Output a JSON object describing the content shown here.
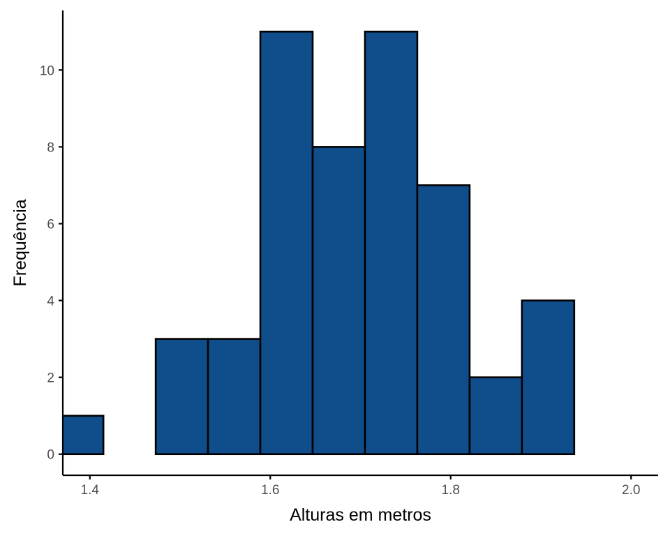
{
  "chart_data": {
    "type": "histogram",
    "title": "",
    "xlabel": "Alturas em metros",
    "ylabel": "Frequência",
    "xlim": [
      1.37,
      2.03
    ],
    "ylim": [
      -0.55,
      11.55
    ],
    "x_ticks": [
      1.4,
      1.6,
      1.8,
      2.0
    ],
    "x_tick_labels": [
      "1.4",
      "1.6",
      "1.8",
      "2.0"
    ],
    "y_ticks": [
      0,
      2,
      4,
      6,
      8,
      10
    ],
    "y_tick_labels": [
      "0",
      "2",
      "4",
      "6",
      "8",
      "10"
    ],
    "bins": [
      {
        "x0": 1.357,
        "x1": 1.415,
        "count": 1
      },
      {
        "x0": 1.415,
        "x1": 1.473,
        "count": 0
      },
      {
        "x0": 1.473,
        "x1": 1.531,
        "count": 3
      },
      {
        "x0": 1.531,
        "x1": 1.589,
        "count": 3
      },
      {
        "x0": 1.589,
        "x1": 1.647,
        "count": 11
      },
      {
        "x0": 1.647,
        "x1": 1.705,
        "count": 8
      },
      {
        "x0": 1.705,
        "x1": 1.763,
        "count": 11
      },
      {
        "x0": 1.763,
        "x1": 1.821,
        "count": 7
      },
      {
        "x0": 1.821,
        "x1": 1.879,
        "count": 2
      },
      {
        "x0": 1.879,
        "x1": 1.937,
        "count": 4
      }
    ],
    "grid": false,
    "legend": "none",
    "colors": {
      "bar_fill": "#104E8B",
      "bar_stroke": "#000000",
      "axis": "#000000",
      "tick_label": "#4d4d4d",
      "background": "#ffffff"
    }
  }
}
